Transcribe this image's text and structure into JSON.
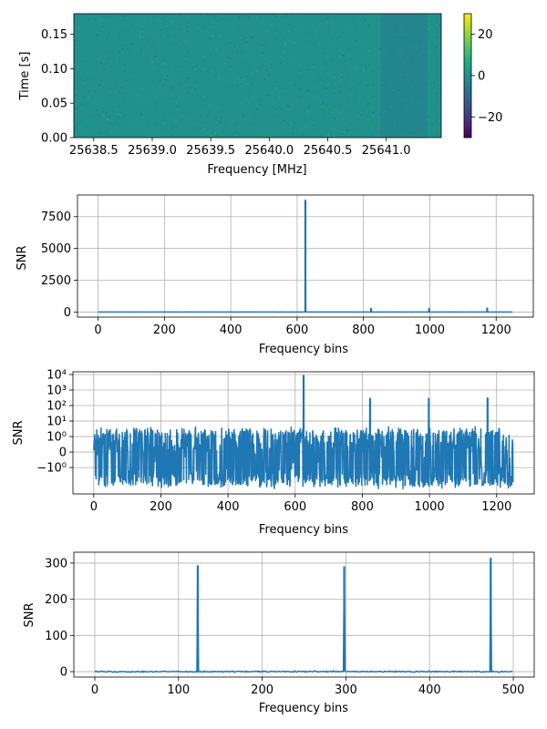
{
  "chart_data": [
    {
      "type": "heatmap",
      "xlabel": "Frequency [MHz]",
      "ylabel": "Time [s]",
      "xlim": [
        25638.33,
        25641.47
      ],
      "ylim": [
        0,
        0.18
      ],
      "xticks": [
        25638.5,
        25639.0,
        25639.5,
        25640.0,
        25640.5,
        25641.0
      ],
      "xtick_labels": [
        "25638.5",
        "25639.0",
        "25639.5",
        "25640.0",
        "25640.5",
        "25641.0"
      ],
      "yticks": [
        0,
        0.05,
        0.1,
        0.15
      ],
      "ytick_labels": [
        "0.00",
        "0.05",
        "0.10",
        "0.15"
      ],
      "colormap": "viridis",
      "color_range": [
        -30,
        30
      ],
      "colorbar_ticks": [
        20,
        0,
        -20
      ],
      "colorbar_tick_labels": [
        "20",
        "0",
        "−20"
      ],
      "grid": false,
      "colors": {
        "background_noise": "#21918c",
        "dim_band": "#2c728e"
      }
    },
    {
      "type": "line",
      "xlabel": "Frequency bins",
      "ylabel": "SNR",
      "xlim": [
        -62,
        1312
      ],
      "ylim": [
        -400,
        9200
      ],
      "xticks": [
        0,
        200,
        400,
        600,
        800,
        1000,
        1200
      ],
      "xtick_labels": [
        "0",
        "200",
        "400",
        "600",
        "800",
        "1000",
        "1200"
      ],
      "yticks": [
        0,
        2500,
        5000,
        7500
      ],
      "ytick_labels": [
        "0",
        "2500",
        "5000",
        "7500"
      ],
      "grid": true,
      "color": "#1f77b4",
      "x_range": [
        0,
        1249
      ],
      "peaks": [
        {
          "x": 625,
          "y": 8800
        },
        {
          "x": 823,
          "y": 290
        },
        {
          "x": 998,
          "y": 285
        },
        {
          "x": 1173,
          "y": 310
        }
      ]
    },
    {
      "type": "line",
      "xlabel": "Frequency bins",
      "ylabel": "SNR",
      "yscale": "symlog",
      "xlim": [
        -62,
        1312
      ],
      "ylim": [
        -50,
        15000
      ],
      "xticks": [
        0,
        200,
        400,
        600,
        800,
        1000,
        1200
      ],
      "xtick_labels": [
        "0",
        "200",
        "400",
        "600",
        "800",
        "1000",
        "1200"
      ],
      "ytick_labels": [
        "10⁴",
        "10³",
        "10²",
        "10¹",
        "10⁰",
        "0",
        "−10⁰"
      ],
      "grid": true,
      "color": "#1f77b4",
      "x_range": [
        0,
        1249
      ],
      "peaks": [
        {
          "x": 625,
          "y": 8800
        },
        {
          "x": 823,
          "y": 290
        },
        {
          "x": 998,
          "y": 285
        },
        {
          "x": 1173,
          "y": 310
        }
      ]
    },
    {
      "type": "line",
      "xlabel": "Frequency bins",
      "ylabel": "SNR",
      "xlim": [
        -25,
        525
      ],
      "ylim": [
        -15,
        330
      ],
      "xticks": [
        0,
        100,
        200,
        300,
        400,
        500
      ],
      "xtick_labels": [
        "0",
        "100",
        "200",
        "300",
        "400",
        "500"
      ],
      "yticks": [
        0,
        100,
        200,
        300
      ],
      "ytick_labels": [
        "0",
        "100",
        "200",
        "300"
      ],
      "grid": true,
      "color": "#1f77b4",
      "x_range": [
        0,
        499
      ],
      "peaks": [
        {
          "x": 123,
          "y": 293
        },
        {
          "x": 298,
          "y": 290
        },
        {
          "x": 473,
          "y": 313
        }
      ]
    }
  ]
}
